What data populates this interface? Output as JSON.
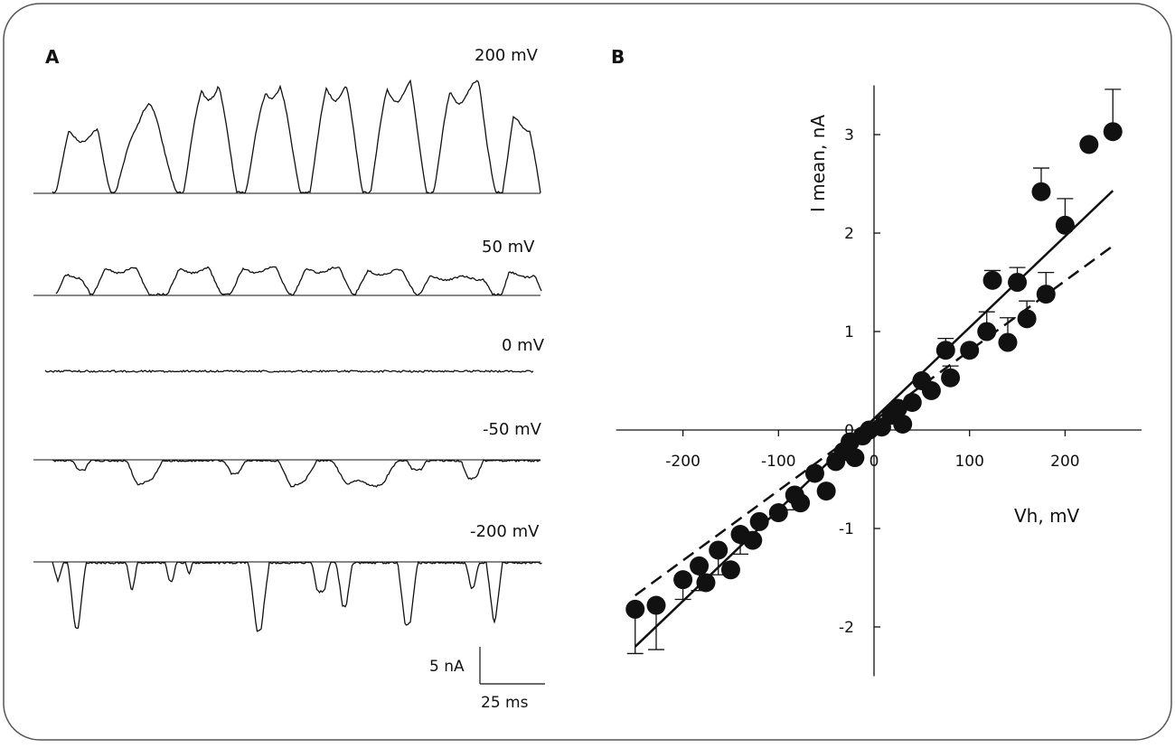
{
  "panel_a": {
    "letter": "A",
    "traces": [
      {
        "label": "200 mV"
      },
      {
        "label": "50 mV"
      },
      {
        "label": "0 mV"
      },
      {
        "label": "-50 mV"
      },
      {
        "label": "-200 mV"
      }
    ],
    "scale_bar": {
      "current_label": "5 nA",
      "time_label": "25 ms"
    }
  },
  "panel_b": {
    "letter": "B"
  },
  "chart_data": {
    "type": "scatter",
    "title": "",
    "xlabel": "Vh, mV",
    "ylabel": "I mean, nA",
    "xlim": [
      -270,
      280
    ],
    "ylim": [
      -2.5,
      3.5
    ],
    "x_ticks": [
      -200,
      -100,
      0,
      100,
      200
    ],
    "x_tick_labels": [
      "-200",
      "-100",
      "0",
      "100",
      "200"
    ],
    "y_ticks": [
      -2,
      -1,
      0,
      1,
      2,
      3
    ],
    "y_tick_labels": [
      "-2",
      "-1",
      "0",
      "1",
      "2",
      "3"
    ],
    "points": [
      {
        "x": -250,
        "y": -1.82,
        "err": 0.45
      },
      {
        "x": -228,
        "y": -1.78,
        "err": 0.45
      },
      {
        "x": -200,
        "y": -1.52,
        "err": 0.2
      },
      {
        "x": -183,
        "y": -1.38,
        "err": 0.25
      },
      {
        "x": -176,
        "y": -1.55
      },
      {
        "x": -163,
        "y": -1.22,
        "err": 0.25
      },
      {
        "x": -150,
        "y": -1.42
      },
      {
        "x": -140,
        "y": -1.06,
        "err": 0.2
      },
      {
        "x": -127,
        "y": -1.12
      },
      {
        "x": -120,
        "y": -0.93
      },
      {
        "x": -100,
        "y": -0.84
      },
      {
        "x": -83,
        "y": -0.66,
        "err": 0.15
      },
      {
        "x": -77,
        "y": -0.74
      },
      {
        "x": -62,
        "y": -0.44
      },
      {
        "x": -50,
        "y": -0.62
      },
      {
        "x": -40,
        "y": -0.32
      },
      {
        "x": -32,
        "y": -0.22
      },
      {
        "x": -25,
        "y": -0.12
      },
      {
        "x": -20,
        "y": -0.28
      },
      {
        "x": -12,
        "y": -0.06
      },
      {
        "x": -5,
        "y": 0.0
      },
      {
        "x": 8,
        "y": 0.03
      },
      {
        "x": 18,
        "y": 0.15
      },
      {
        "x": 25,
        "y": 0.22
      },
      {
        "x": 30,
        "y": 0.06
      },
      {
        "x": 40,
        "y": 0.28
      },
      {
        "x": 50,
        "y": 0.5
      },
      {
        "x": 60,
        "y": 0.4
      },
      {
        "x": 75,
        "y": 0.81,
        "err": 0.12
      },
      {
        "x": 80,
        "y": 0.53,
        "err": 0.12
      },
      {
        "x": 100,
        "y": 0.81
      },
      {
        "x": 118,
        "y": 1.0,
        "err": 0.2
      },
      {
        "x": 124,
        "y": 1.52,
        "err": 0.1
      },
      {
        "x": 140,
        "y": 0.89,
        "err": 0.25
      },
      {
        "x": 150,
        "y": 1.5,
        "err": 0.15
      },
      {
        "x": 160,
        "y": 1.13,
        "err": 0.18
      },
      {
        "x": 175,
        "y": 2.42,
        "err": 0.24
      },
      {
        "x": 180,
        "y": 1.38,
        "err": 0.22
      },
      {
        "x": 200,
        "y": 2.08,
        "err": 0.27
      },
      {
        "x": 225,
        "y": 2.9
      },
      {
        "x": 250,
        "y": 3.03,
        "err": 0.43
      }
    ],
    "fit_lines": [
      {
        "style": "solid",
        "x": [
          -250,
          250
        ],
        "y": [
          -2.2,
          2.43
        ]
      },
      {
        "style": "dashed",
        "x": [
          -250,
          250
        ],
        "y": [
          -1.68,
          1.87
        ]
      }
    ]
  }
}
